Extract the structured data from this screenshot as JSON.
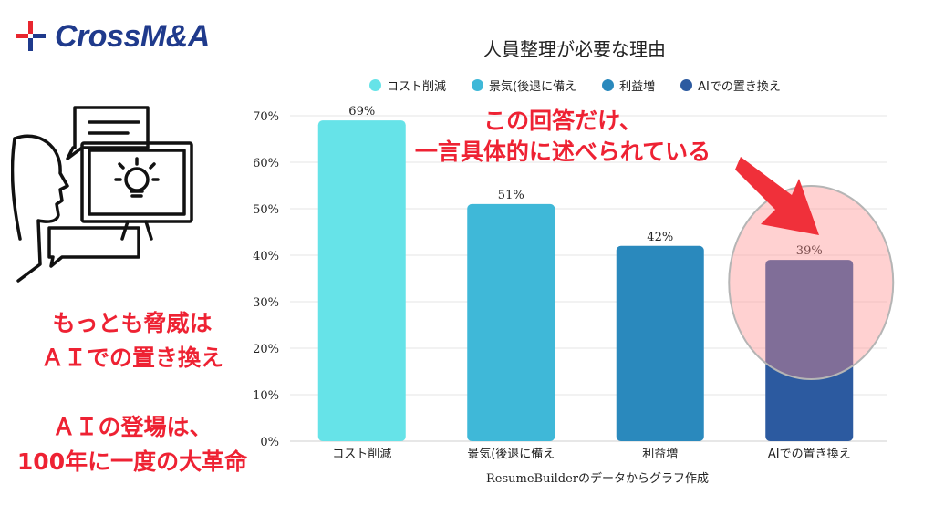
{
  "brand": {
    "name": "CrossM&A",
    "mark_colors": [
      "#e8262f",
      "#1f3a8c"
    ]
  },
  "left_panel": {
    "threat_lines": [
      "もっとも脅威は",
      "ＡＩでの置き換え"
    ],
    "revolution_lines": [
      "ＡＩの登場は、",
      "100年に一度の大革命"
    ],
    "illustration_icon": "person-with-idea-screen-icon"
  },
  "annotation": {
    "lines": [
      "この回答だけ、",
      "一言具体的に述べられている"
    ],
    "color": "#ee2233"
  },
  "source_note": "ResumeBuilderのデータからグラフ作成",
  "chart_data": {
    "type": "bar",
    "title": "人員整理が必要な理由",
    "categories": [
      "コスト削減",
      "景気(後退に備え",
      "利益増",
      "AIでの置き換え"
    ],
    "values": [
      69,
      51,
      42,
      39
    ],
    "value_labels": [
      "69%",
      "51%",
      "42%",
      "39%"
    ],
    "colors": [
      "#66e3e8",
      "#3fb8d8",
      "#2a89bd",
      "#2c5aa0"
    ],
    "legend": [
      "コスト削減",
      "景気(後退に備え",
      "利益増",
      "AIでの置き換え"
    ],
    "legend_position": "top",
    "yticks": [
      "0%",
      "10%",
      "20%",
      "30%",
      "40%",
      "50%",
      "60%",
      "70%"
    ],
    "ylim": [
      0,
      70
    ],
    "grid": true,
    "highlight_index": 3
  }
}
